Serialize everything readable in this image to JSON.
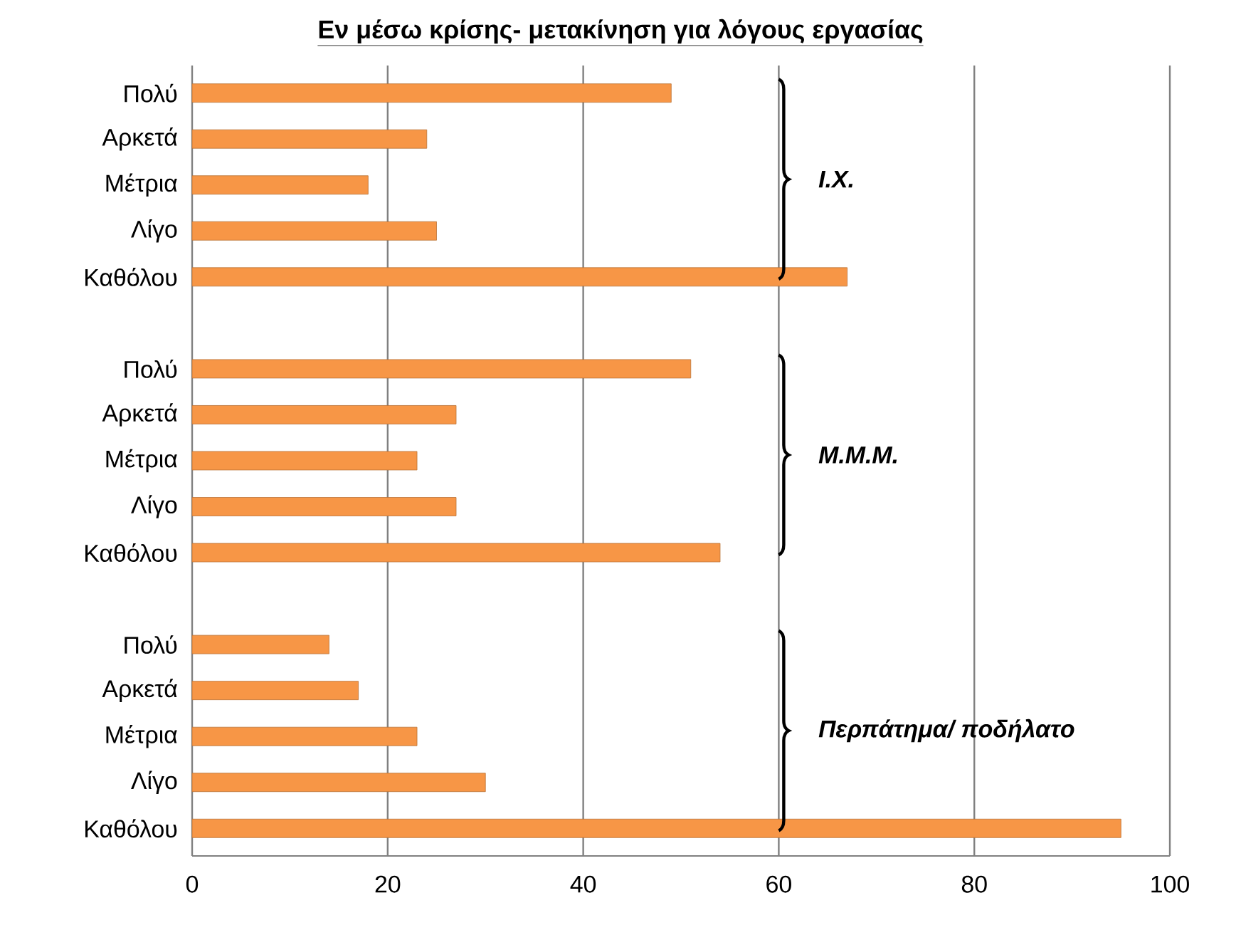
{
  "chart_data": {
    "type": "bar",
    "orientation": "horizontal",
    "title": "Εν μέσω κρίσης- μετακίνηση για λόγους εργασίας",
    "categories": [
      "Πολύ",
      "Αρκετά",
      "Μέτρια",
      "Λίγο",
      "Καθόλου",
      null,
      "Πολύ",
      "Αρκετά",
      "Μέτρια",
      "Λίγο",
      "Καθόλου",
      null,
      "Πολύ",
      "Αρκετά",
      "Μέτρια",
      "Λίγο",
      "Καθόλου"
    ],
    "values": [
      49,
      24,
      18,
      25,
      67,
      null,
      51,
      27,
      23,
      27,
      54,
      null,
      14,
      17,
      23,
      30,
      95
    ],
    "color": "#f79646",
    "xlim": [
      0,
      100
    ],
    "xticks": [
      0,
      20,
      40,
      60,
      80,
      100
    ],
    "grid": "x",
    "annotations": [
      "Ι.Χ.",
      "Μ.Μ.Μ.",
      "Περπάτημα/ ποδήλατο"
    ]
  }
}
